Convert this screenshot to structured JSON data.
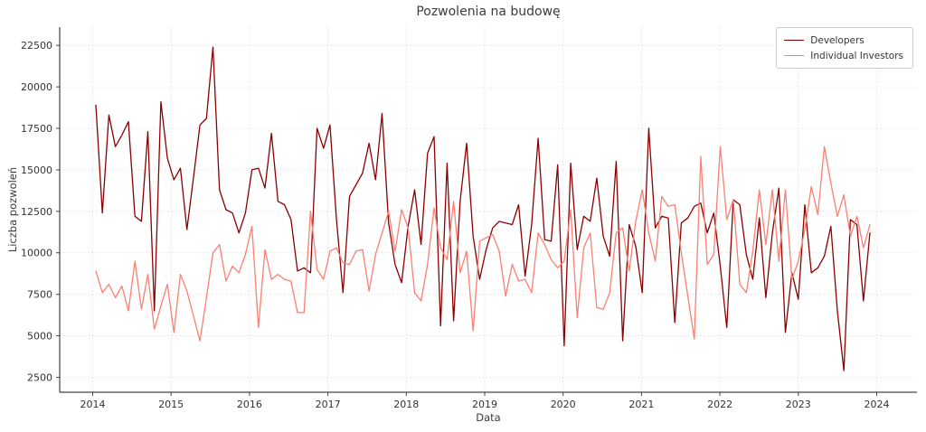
{
  "chart_data": {
    "type": "line",
    "title": "Pozwolenia na budowę",
    "xlabel": "Data",
    "ylabel": "Liczba pozwoleń",
    "x_start": "2014-01",
    "x_end": "2023-12",
    "frequency": "monthly",
    "xticks": [
      2014,
      2015,
      2016,
      2017,
      2018,
      2019,
      2020,
      2021,
      2022,
      2023,
      2024
    ],
    "yticks": [
      2500,
      5000,
      7500,
      10000,
      12500,
      15000,
      17500,
      20000,
      22500
    ],
    "ylim": [
      1600,
      23600
    ],
    "grid": "dotted",
    "legend_position": "top-right",
    "series": [
      {
        "name": "Developers",
        "color": "#8B0000",
        "values": [
          18900,
          12400,
          18300,
          16400,
          17100,
          17900,
          12200,
          11900,
          17300,
          6500,
          19100,
          15700,
          14400,
          15100,
          11400,
          14500,
          17700,
          18100,
          22400,
          13800,
          12600,
          12400,
          11200,
          12400,
          15000,
          15100,
          13900,
          17200,
          13100,
          12900,
          12000,
          8900,
          9100,
          8800,
          17500,
          16300,
          17700,
          12000,
          7600,
          13400,
          14100,
          14800,
          16600,
          14400,
          18400,
          11800,
          9300,
          8200,
          11600,
          13800,
          10500,
          16000,
          17000,
          5600,
          15400,
          5900,
          13100,
          16600,
          11000,
          8400,
          10200,
          11500,
          11900,
          11800,
          11700,
          12900,
          8600,
          11700,
          16900,
          10800,
          10700,
          15300,
          4400,
          15400,
          10200,
          12200,
          11900,
          14500,
          11000,
          9800,
          15500,
          4700,
          11700,
          10400,
          7600,
          17500,
          11500,
          12200,
          12100,
          5800,
          11800,
          12100,
          12800,
          13000,
          11200,
          12400,
          9200,
          5500,
          13200,
          12900,
          9900,
          8400,
          12100,
          7300,
          11200,
          13900,
          5200,
          8800,
          7200,
          12900,
          8800,
          9100,
          9800,
          11600,
          6500,
          2900,
          12000,
          11700,
          7100,
          11200
        ]
      },
      {
        "name": "Individual Investors",
        "color": "#FA8072",
        "values": [
          8900,
          7600,
          8100,
          7300,
          8000,
          6500,
          9500,
          6600,
          8700,
          5400,
          6800,
          8100,
          5200,
          8700,
          7700,
          6200,
          4700,
          7300,
          10000,
          10500,
          8300,
          9200,
          8800,
          9900,
          11600,
          5500,
          10200,
          8400,
          8700,
          8400,
          8300,
          6400,
          6400,
          12500,
          9000,
          8400,
          10100,
          10300,
          9400,
          9300,
          10100,
          10200,
          7700,
          9900,
          11200,
          12500,
          10100,
          12600,
          11500,
          7600,
          7100,
          9300,
          12700,
          10300,
          9600,
          13100,
          8800,
          10100,
          5300,
          10700,
          10900,
          11100,
          10100,
          7400,
          9300,
          8300,
          8400,
          7600,
          11200,
          10500,
          9600,
          9100,
          9500,
          12600,
          6100,
          10300,
          11200,
          6700,
          6600,
          7600,
          11200,
          11500,
          8900,
          11900,
          13800,
          11200,
          9500,
          13400,
          12800,
          12900,
          10000,
          7400,
          4800,
          15800,
          9300,
          9900,
          16400,
          12000,
          13200,
          8100,
          7600,
          10100,
          13800,
          10500,
          13800,
          9500,
          13800,
          8400,
          9500,
          11400,
          14000,
          12300,
          16400,
          14200,
          12200,
          13500,
          11000,
          12200,
          10300,
          11700
        ]
      }
    ],
    "style": {
      "grid_color": "#cccccc",
      "spine_color": "#444444",
      "tick_label_color": "#333333",
      "background": "#ffffff"
    }
  }
}
